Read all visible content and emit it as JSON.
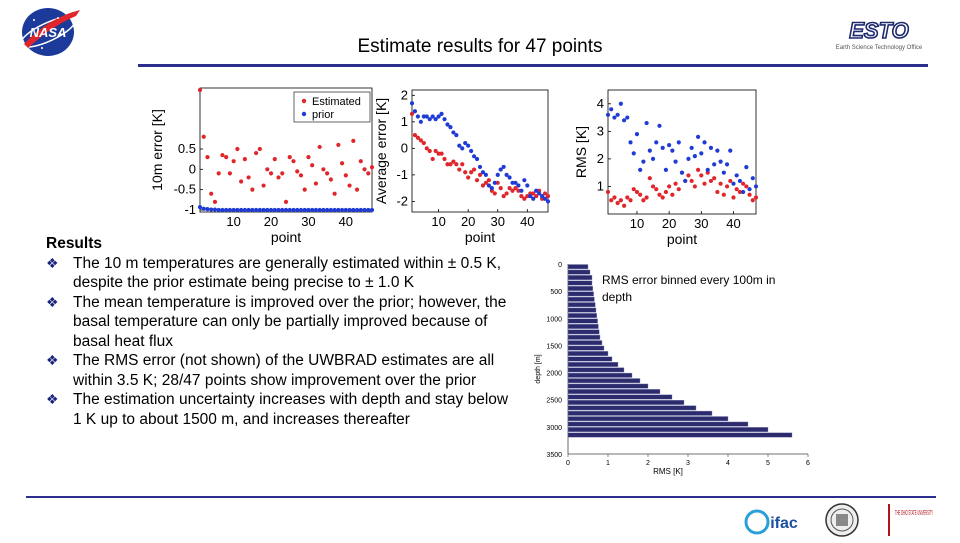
{
  "slide": {
    "title": "Estimate results for 47 points",
    "esto_logo_text": "ESTO",
    "esto_logo_subtitle": "Earth Science Technology Office",
    "ohio_state_text": "THE OHIO STATE UNIVERSITY",
    "ifac_text": "ifac"
  },
  "results": {
    "heading": "Results",
    "bullets": [
      "The 10 m temperatures are generally estimated within ± 0.5 K, despite the prior estimate being precise to ± 1.0 K",
      "The mean temperature is improved over the prior; however, the basal temperature can only be partially improved because of basal heat flux",
      "The RMS error (not shown) of the UWBRAD estimates are all within 3.5 K; 28/47 points show improvement over the prior",
      "The estimation uncertainty increases with depth and stay below 1 K up to about 1500 m, and increases thereafter"
    ]
  },
  "histogram_note": "RMS error binned every 100m in depth",
  "colors": {
    "estimated": "#e0262b",
    "prior": "#1f3bd6",
    "bar": "#2b2b6e",
    "rule": "#2b2e8c"
  },
  "chart_data": [
    {
      "type": "scatter",
      "xlabel": "point",
      "ylabel": "10m error [K]",
      "xlim": [
        1,
        47
      ],
      "ylim": [
        -1.05,
        2.0
      ],
      "xticks": [
        10,
        20,
        30,
        40
      ],
      "yticks": [
        -1,
        -0.5,
        0,
        0.5
      ],
      "legend": "top-right",
      "series": [
        {
          "name": "Estimated",
          "color": "#e0262b",
          "x": [
            1,
            2,
            3,
            4,
            5,
            6,
            7,
            8,
            9,
            10,
            11,
            12,
            13,
            14,
            15,
            16,
            17,
            18,
            19,
            20,
            21,
            22,
            23,
            24,
            25,
            26,
            27,
            28,
            29,
            30,
            31,
            32,
            33,
            34,
            35,
            36,
            37,
            38,
            39,
            40,
            41,
            42,
            43,
            44,
            45,
            46,
            47
          ],
          "y": [
            1.95,
            0.8,
            0.3,
            -0.6,
            -0.8,
            -0.1,
            0.35,
            0.3,
            -0.1,
            0.2,
            0.5,
            -0.3,
            0.25,
            -0.2,
            -0.5,
            0.4,
            0.5,
            -0.4,
            0.0,
            -0.1,
            0.25,
            -0.2,
            -0.1,
            -0.8,
            0.3,
            0.2,
            -0.05,
            -0.15,
            -0.5,
            0.3,
            0.1,
            -0.35,
            0.55,
            0.0,
            -0.1,
            -0.25,
            -0.6,
            0.6,
            0.15,
            -0.15,
            -0.4,
            0.7,
            -0.5,
            0.2,
            0.0,
            -0.1,
            0.05
          ]
        },
        {
          "name": "prior",
          "color": "#1f3bd6",
          "x": [
            1,
            2,
            3,
            4,
            5,
            6,
            7,
            8,
            9,
            10,
            11,
            12,
            13,
            14,
            15,
            16,
            17,
            18,
            19,
            20,
            21,
            22,
            23,
            24,
            25,
            26,
            27,
            28,
            29,
            30,
            31,
            32,
            33,
            34,
            35,
            36,
            37,
            38,
            39,
            40,
            41,
            42,
            43,
            44,
            45,
            46,
            47
          ],
          "y": [
            -0.93,
            -0.97,
            -0.98,
            -0.99,
            -0.99,
            -1,
            -1,
            -1,
            -1,
            -1,
            -1,
            -1,
            -1,
            -1,
            -1,
            -1,
            -1,
            -1,
            -1,
            -1,
            -1,
            -1,
            -1,
            -1,
            -1,
            -1,
            -1,
            -1,
            -1,
            -1,
            -1,
            -1,
            -1,
            -1,
            -1,
            -1,
            -1,
            -1,
            -1,
            -1,
            -1,
            -1,
            -1,
            -1,
            -1,
            -1,
            -1
          ]
        }
      ]
    },
    {
      "type": "scatter",
      "xlabel": "point",
      "ylabel": "Average error [K]",
      "xlim": [
        1,
        47
      ],
      "ylim": [
        -2.4,
        2.2
      ],
      "xticks": [
        10,
        20,
        30,
        40
      ],
      "yticks": [
        -2,
        -1,
        0,
        1,
        2
      ],
      "series": [
        {
          "name": "Estimated",
          "color": "#e0262b",
          "x": [
            1,
            2,
            3,
            4,
            5,
            6,
            7,
            8,
            9,
            10,
            11,
            12,
            13,
            14,
            15,
            16,
            17,
            18,
            19,
            20,
            21,
            22,
            23,
            24,
            25,
            26,
            27,
            28,
            29,
            30,
            31,
            32,
            33,
            34,
            35,
            36,
            37,
            38,
            39,
            40,
            41,
            42,
            43,
            44,
            45,
            46,
            47
          ],
          "y": [
            1.3,
            0.5,
            0.4,
            0.3,
            0.2,
            0.0,
            -0.1,
            -0.4,
            -0.1,
            -0.2,
            -0.2,
            -0.4,
            -0.6,
            -0.6,
            -0.5,
            -0.6,
            -0.8,
            -0.6,
            -0.9,
            -1.1,
            -0.9,
            -0.8,
            -1.2,
            -1.0,
            -1.4,
            -1.3,
            -1.2,
            -1.6,
            -1.7,
            -1.3,
            -1.5,
            -1.8,
            -1.7,
            -1.5,
            -1.6,
            -1.5,
            -1.6,
            -1.8,
            -1.9,
            -1.8,
            -1.7,
            -1.7,
            -1.8,
            -1.6,
            -1.9,
            -1.7,
            -1.8
          ]
        },
        {
          "name": "prior",
          "color": "#1f3bd6",
          "x": [
            1,
            2,
            3,
            4,
            5,
            6,
            7,
            8,
            9,
            10,
            11,
            12,
            13,
            14,
            15,
            16,
            17,
            18,
            19,
            20,
            21,
            22,
            23,
            24,
            25,
            26,
            27,
            28,
            29,
            30,
            31,
            32,
            33,
            34,
            35,
            36,
            37,
            38,
            39,
            40,
            41,
            42,
            43,
            44,
            45,
            46,
            47
          ],
          "y": [
            1.7,
            1.4,
            1.2,
            1.0,
            1.2,
            1.2,
            1.1,
            1.2,
            1.1,
            1.2,
            1.3,
            1.1,
            0.9,
            0.8,
            0.6,
            0.5,
            0.1,
            0.0,
            0.2,
            0.1,
            -0.1,
            -0.3,
            -0.4,
            -0.7,
            -0.9,
            -1.0,
            -1.4,
            -1.5,
            -1.3,
            -1.0,
            -0.8,
            -0.7,
            -1.0,
            -1.1,
            -1.3,
            -1.3,
            -1.4,
            -1.6,
            -1.2,
            -1.4,
            -1.8,
            -1.9,
            -1.6,
            -1.7,
            -1.8,
            -1.9,
            -2.0
          ]
        }
      ]
    },
    {
      "type": "scatter",
      "xlabel": "point",
      "ylabel": "RMS [K]",
      "xlim": [
        1,
        47
      ],
      "ylim": [
        0,
        4.5
      ],
      "xticks": [
        10,
        20,
        30,
        40
      ],
      "yticks": [
        1,
        2,
        3,
        4
      ],
      "series": [
        {
          "name": "Estimated",
          "color": "#e0262b",
          "x": [
            1,
            2,
            3,
            4,
            5,
            6,
            7,
            8,
            9,
            10,
            11,
            12,
            13,
            14,
            15,
            16,
            17,
            18,
            19,
            20,
            21,
            22,
            23,
            24,
            25,
            26,
            27,
            28,
            29,
            30,
            31,
            32,
            33,
            34,
            35,
            36,
            37,
            38,
            39,
            40,
            41,
            42,
            43,
            44,
            45,
            46,
            47
          ],
          "y": [
            0.8,
            0.5,
            0.6,
            0.4,
            0.5,
            0.3,
            0.6,
            0.5,
            0.9,
            0.8,
            0.7,
            0.5,
            0.6,
            1.3,
            1.0,
            0.9,
            0.7,
            0.6,
            0.8,
            1.0,
            0.7,
            1.1,
            0.9,
            1.5,
            1.2,
            1.4,
            1.2,
            1.0,
            1.6,
            1.4,
            1.1,
            1.5,
            1.2,
            1.3,
            0.8,
            1.1,
            0.7,
            1.0,
            1.2,
            0.6,
            0.9,
            0.8,
            1.1,
            1.0,
            0.7,
            0.5,
            0.6
          ]
        },
        {
          "name": "prior",
          "color": "#1f3bd6",
          "x": [
            1,
            2,
            3,
            4,
            5,
            6,
            7,
            8,
            9,
            10,
            11,
            12,
            13,
            14,
            15,
            16,
            17,
            18,
            19,
            20,
            21,
            22,
            23,
            24,
            25,
            26,
            27,
            28,
            29,
            30,
            31,
            32,
            33,
            34,
            35,
            36,
            37,
            38,
            39,
            40,
            41,
            42,
            43,
            44,
            45,
            46,
            47
          ],
          "y": [
            3.6,
            3.8,
            3.5,
            3.6,
            4.0,
            3.4,
            3.5,
            2.6,
            2.2,
            2.9,
            1.6,
            1.9,
            3.3,
            2.3,
            2.0,
            2.6,
            3.2,
            2.4,
            1.6,
            2.5,
            2.3,
            1.9,
            2.6,
            1.5,
            1.2,
            2.0,
            2.4,
            2.1,
            2.8,
            2.2,
            2.6,
            1.6,
            2.4,
            1.8,
            2.3,
            1.9,
            1.5,
            1.8,
            2.3,
            1.1,
            1.4,
            1.2,
            0.8,
            1.7,
            0.9,
            1.3,
            1.0
          ]
        }
      ]
    },
    {
      "type": "bar",
      "orientation": "horizontal",
      "xlabel": "RMS [K]",
      "ylabel": "depth [m]",
      "xlim": [
        0,
        6
      ],
      "ylim": [
        0,
        3500
      ],
      "xticks": [
        0,
        1,
        2,
        3,
        4,
        5,
        6
      ],
      "yticks": [
        0,
        500,
        1000,
        1500,
        2000,
        2500,
        3000,
        3500
      ],
      "bin_width": 100,
      "categories": [
        50,
        150,
        250,
        350,
        450,
        550,
        650,
        750,
        850,
        950,
        1050,
        1150,
        1250,
        1350,
        1450,
        1550,
        1650,
        1750,
        1850,
        1950,
        2050,
        2150,
        2250,
        2350,
        2450,
        2550,
        2650,
        2750,
        2850,
        2950,
        3050,
        3150
      ],
      "values": [
        0.5,
        0.55,
        0.6,
        0.6,
        0.62,
        0.64,
        0.66,
        0.68,
        0.7,
        0.72,
        0.74,
        0.76,
        0.78,
        0.8,
        0.85,
        0.9,
        1.0,
        1.1,
        1.25,
        1.4,
        1.6,
        1.8,
        2.0,
        2.3,
        2.6,
        2.9,
        3.2,
        3.6,
        4.0,
        4.5,
        5.0,
        5.6
      ]
    }
  ]
}
